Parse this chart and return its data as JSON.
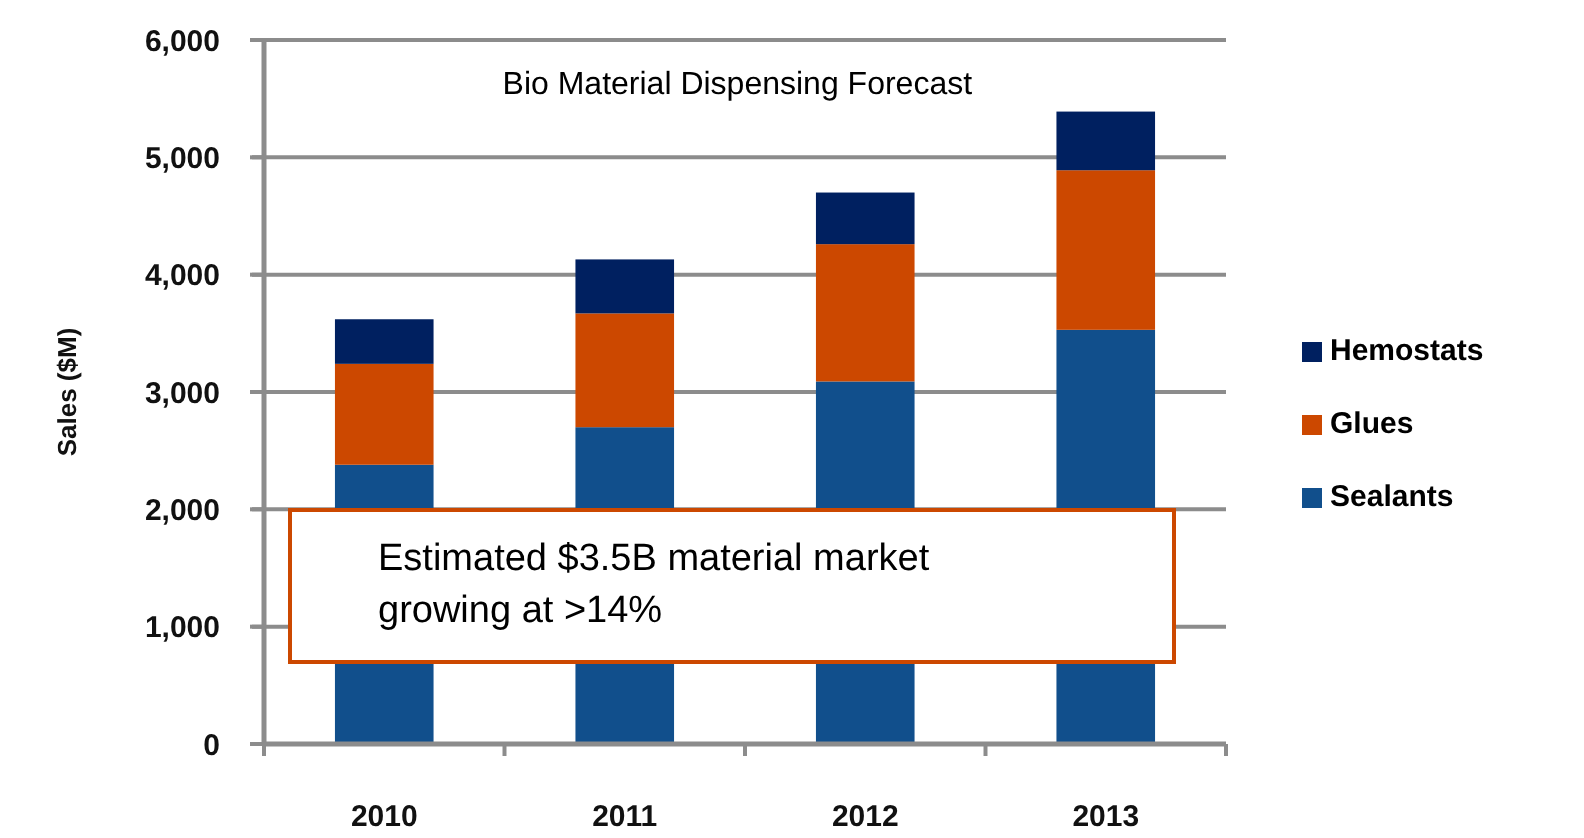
{
  "chart_data": {
    "type": "bar",
    "title": "Bio Material Dispensing Forecast",
    "ylabel": "Sales ($M)",
    "categories": [
      "2010",
      "2011",
      "2012",
      "2013"
    ],
    "series": [
      {
        "name": "Sealants",
        "color": "#114f8c",
        "values": [
          2380,
          2700,
          3090,
          3530
        ]
      },
      {
        "name": "Glues",
        "color": "#cc4800",
        "values": [
          860,
          970,
          1170,
          1360
        ]
      },
      {
        "name": "Hemostats",
        "color": "#002060",
        "values": [
          380,
          460,
          440,
          500
        ]
      }
    ],
    "stacked": true,
    "ylim": [
      0,
      6000
    ],
    "yticks": [
      0,
      {
        "value": 1000,
        "label": "1,000"
      },
      {
        "value": 2000,
        "label": "2,000"
      },
      {
        "value": 3000,
        "label": "3,000"
      },
      {
        "value": 4000,
        "label": "4,000"
      },
      {
        "value": 5000,
        "label": "5,000"
      },
      {
        "value": 6000,
        "label": "6,000"
      }
    ],
    "grid": "y",
    "legend": "right",
    "annotations": [
      "Estimated $3.5B material market growing at >14%"
    ]
  }
}
